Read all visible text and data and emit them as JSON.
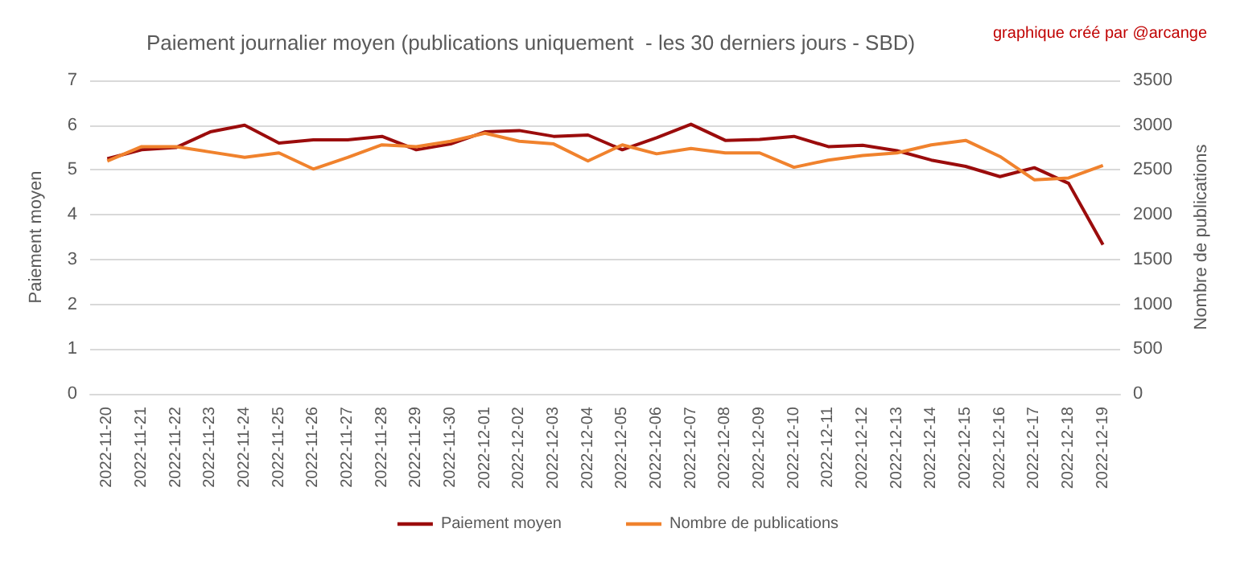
{
  "chart_data": {
    "type": "line",
    "title": "Paiement journalier moyen (publications uniquement  - les 30 derniers jours - SBD)",
    "annotations": [
      "graphique créé par @arcange"
    ],
    "ylabel": "Paiement moyen",
    "y2label": "Nombre de publications",
    "categories": [
      "2022-11-20",
      "2022-11-21",
      "2022-11-22",
      "2022-11-23",
      "2022-11-24",
      "2022-11-25",
      "2022-11-26",
      "2022-11-27",
      "2022-11-28",
      "2022-11-29",
      "2022-11-30",
      "2022-12-01",
      "2022-12-02",
      "2022-12-03",
      "2022-12-04",
      "2022-12-05",
      "2022-12-06",
      "2022-12-07",
      "2022-12-08",
      "2022-12-09",
      "2022-12-10",
      "2022-12-11",
      "2022-12-12",
      "2022-12-13",
      "2022-12-14",
      "2022-12-15",
      "2022-12-16",
      "2022-12-17",
      "2022-12-18",
      "2022-12-19"
    ],
    "series": [
      {
        "name": "Paiement moyen",
        "color": "#9b0c0c",
        "values": [
          5.25,
          5.45,
          5.5,
          5.85,
          6.0,
          5.6,
          5.67,
          5.67,
          5.75,
          5.45,
          5.58,
          5.85,
          5.88,
          5.75,
          5.78,
          5.45,
          5.72,
          6.02,
          5.66,
          5.68,
          5.75,
          5.52,
          5.55,
          5.43,
          5.22,
          5.08,
          4.85,
          5.05,
          4.7,
          3.33
        ]
      },
      {
        "name": "Nombre de publications",
        "color": "#f0822d",
        "axis": "y2",
        "values": [
          2600,
          2760,
          2760,
          2700,
          2640,
          2690,
          2510,
          2640,
          2780,
          2760,
          2820,
          2910,
          2820,
          2790,
          2600,
          2780,
          2680,
          2740,
          2690,
          2690,
          2530,
          2610,
          2660,
          2690,
          2780,
          2830,
          2650,
          2390,
          2410,
          2550
        ]
      }
    ],
    "ylim": [
      0,
      7
    ],
    "yticks": [
      0,
      1,
      2,
      3,
      4,
      5,
      6,
      7
    ],
    "y2lim": [
      0,
      3500
    ],
    "y2ticks": [
      0,
      500,
      1000,
      1500,
      2000,
      2500,
      3000,
      3500
    ],
    "grid": "y",
    "legend": "bottom",
    "marker": "none",
    "line_style": "solid"
  }
}
